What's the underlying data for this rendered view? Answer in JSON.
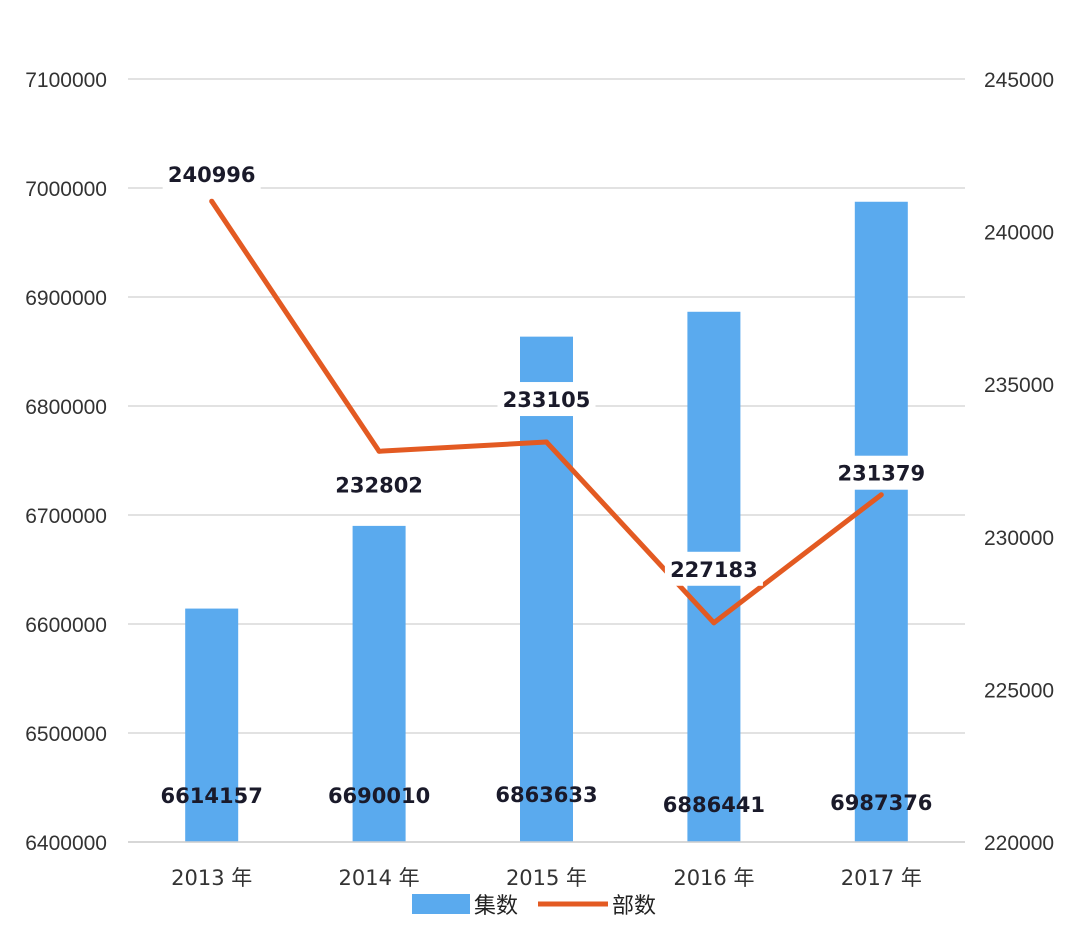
{
  "chart_data": {
    "type": "bar",
    "title": "",
    "categories": [
      "2013 年",
      "2014 年",
      "2015 年",
      "2016 年",
      "2017 年"
    ],
    "series": [
      {
        "name": "集数",
        "type": "bar",
        "axis": "left",
        "values": [
          6614157,
          6690010,
          6863633,
          6886441,
          6987376
        ],
        "labels": [
          "6614157",
          "6690010",
          "6863633",
          "6886441",
          "6987376"
        ],
        "color": "#5aaaee"
      },
      {
        "name": "部数",
        "type": "line",
        "axis": "right",
        "values": [
          240996,
          232802,
          233105,
          227183,
          231379
        ],
        "labels": [
          "240996",
          "232802",
          "233105",
          "227183",
          "231379"
        ],
        "color": "#e35a22"
      }
    ],
    "y_left": {
      "ylim": [
        6400000,
        7100000
      ],
      "ticks": [
        "6400000",
        "6500000",
        "6600000",
        "6700000",
        "6800000",
        "6900000",
        "7000000",
        "7100000"
      ]
    },
    "y_right": {
      "ylim": [
        220000,
        245000
      ],
      "ticks": [
        "220000",
        "225000",
        "230000",
        "235000",
        "240000",
        "245000"
      ]
    },
    "grid": true,
    "legend": "bottom"
  }
}
